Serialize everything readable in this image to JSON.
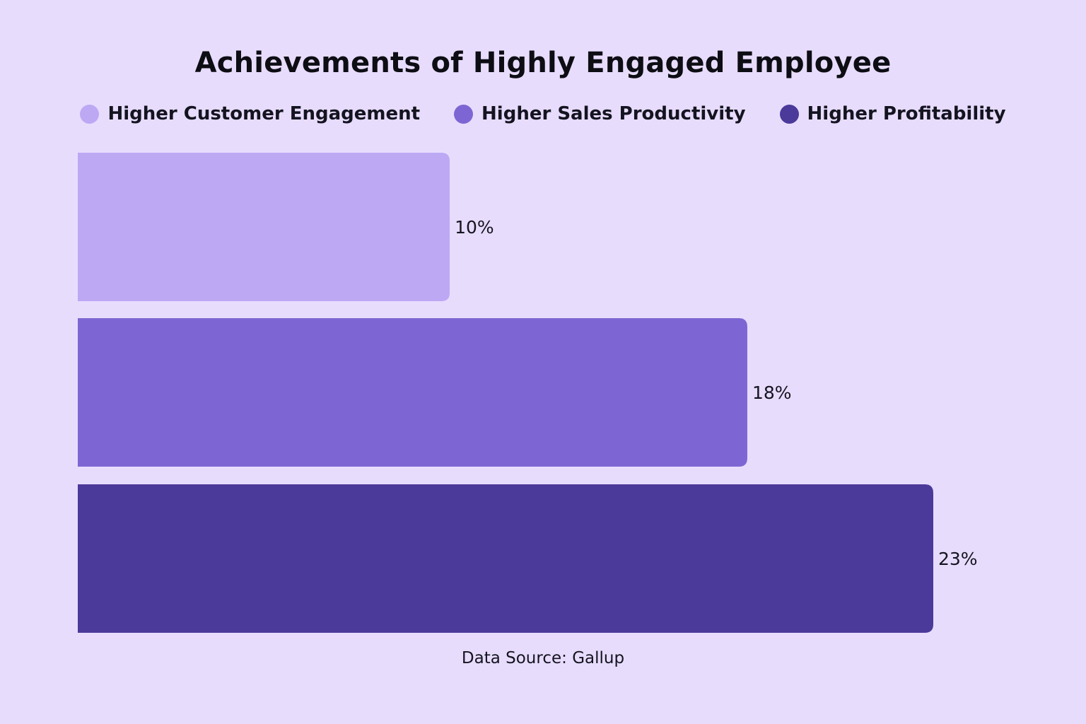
{
  "chart_data": {
    "type": "bar",
    "orientation": "horizontal",
    "title": "Achievements of Highly Engaged Employee",
    "categories": [
      "Higher Customer Engagement",
      "Higher Sales Productivity",
      "Higher Profitability"
    ],
    "values": [
      10,
      18,
      23
    ],
    "value_labels": [
      "10%",
      "18%",
      "23%"
    ],
    "unit": "%",
    "colors": [
      "#bda8f4",
      "#7d66d3",
      "#4b3a9a"
    ],
    "legend": [
      {
        "label": "Higher Customer Engagement",
        "color": "#bda8f4"
      },
      {
        "label": "Higher Sales Productivity",
        "color": "#7d66d3"
      },
      {
        "label": "Higher Profitability",
        "color": "#4b3a9a"
      }
    ],
    "legend_position": "top-center",
    "xlim": [
      0,
      23
    ],
    "grid": false,
    "source": "Data Source: Gallup"
  },
  "colors": {
    "background": "#e8dcfd",
    "text": "#141420"
  }
}
